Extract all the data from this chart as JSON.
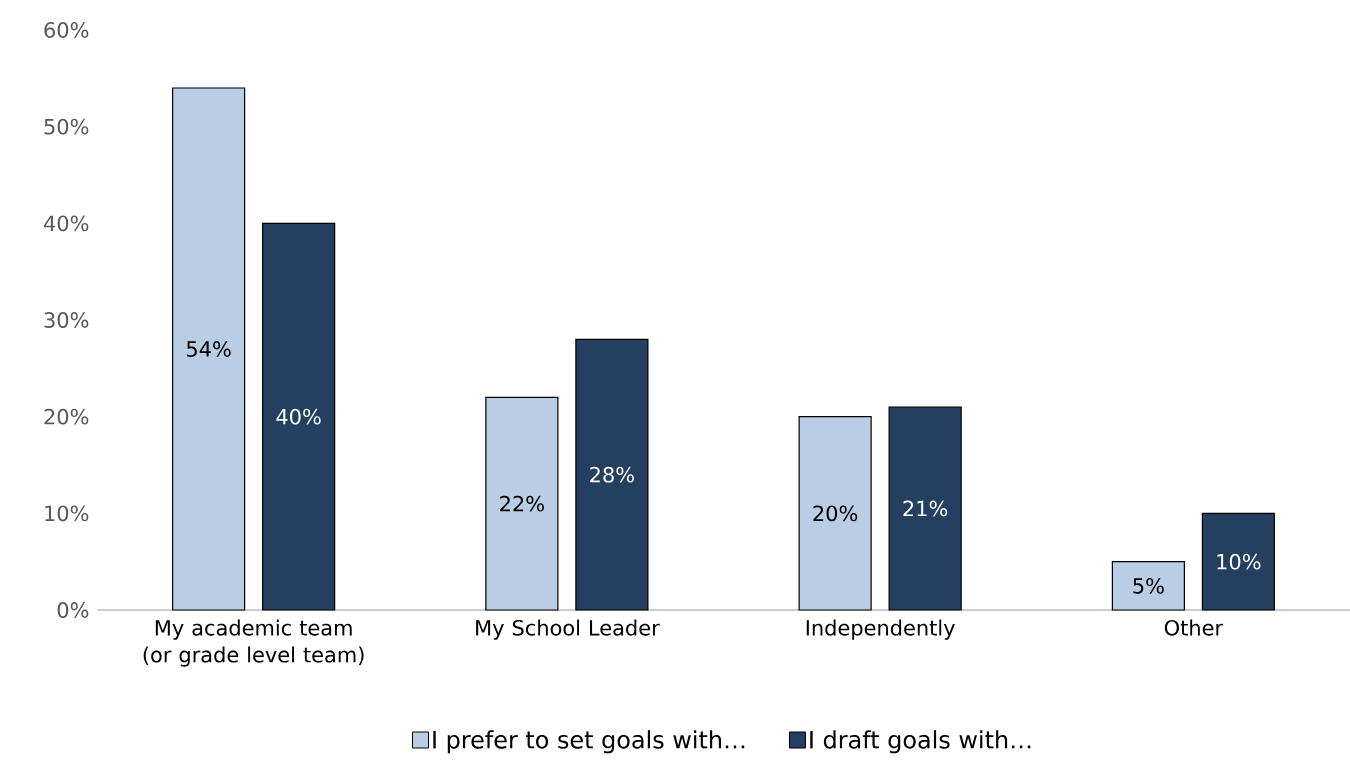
{
  "chart_data": {
    "type": "bar",
    "categories": [
      "My academic team (or grade level team)",
      "My School Leader",
      "Independently",
      "Other"
    ],
    "series": [
      {
        "name": "I prefer to set goals with…",
        "color": "#b9cde5",
        "values": [
          54,
          22,
          20,
          5
        ],
        "value_labels": [
          "54%",
          "22%",
          "20%",
          "5%"
        ]
      },
      {
        "name": "I draft goals with…",
        "color": "#243f60",
        "values": [
          40,
          28,
          21,
          10
        ],
        "value_labels": [
          "40%",
          "28%",
          "21%",
          "10%"
        ]
      }
    ],
    "ylim": [
      0,
      60
    ],
    "yticks": [
      {
        "value": 0,
        "label": "0%"
      },
      {
        "value": 10,
        "label": "10%"
      },
      {
        "value": 20,
        "label": "20%"
      },
      {
        "value": 30,
        "label": "30%"
      },
      {
        "value": 40,
        "label": "40%"
      },
      {
        "value": 50,
        "label": "50%"
      },
      {
        "value": 60,
        "label": "60%"
      }
    ],
    "grid": false,
    "legend": "bottom"
  }
}
